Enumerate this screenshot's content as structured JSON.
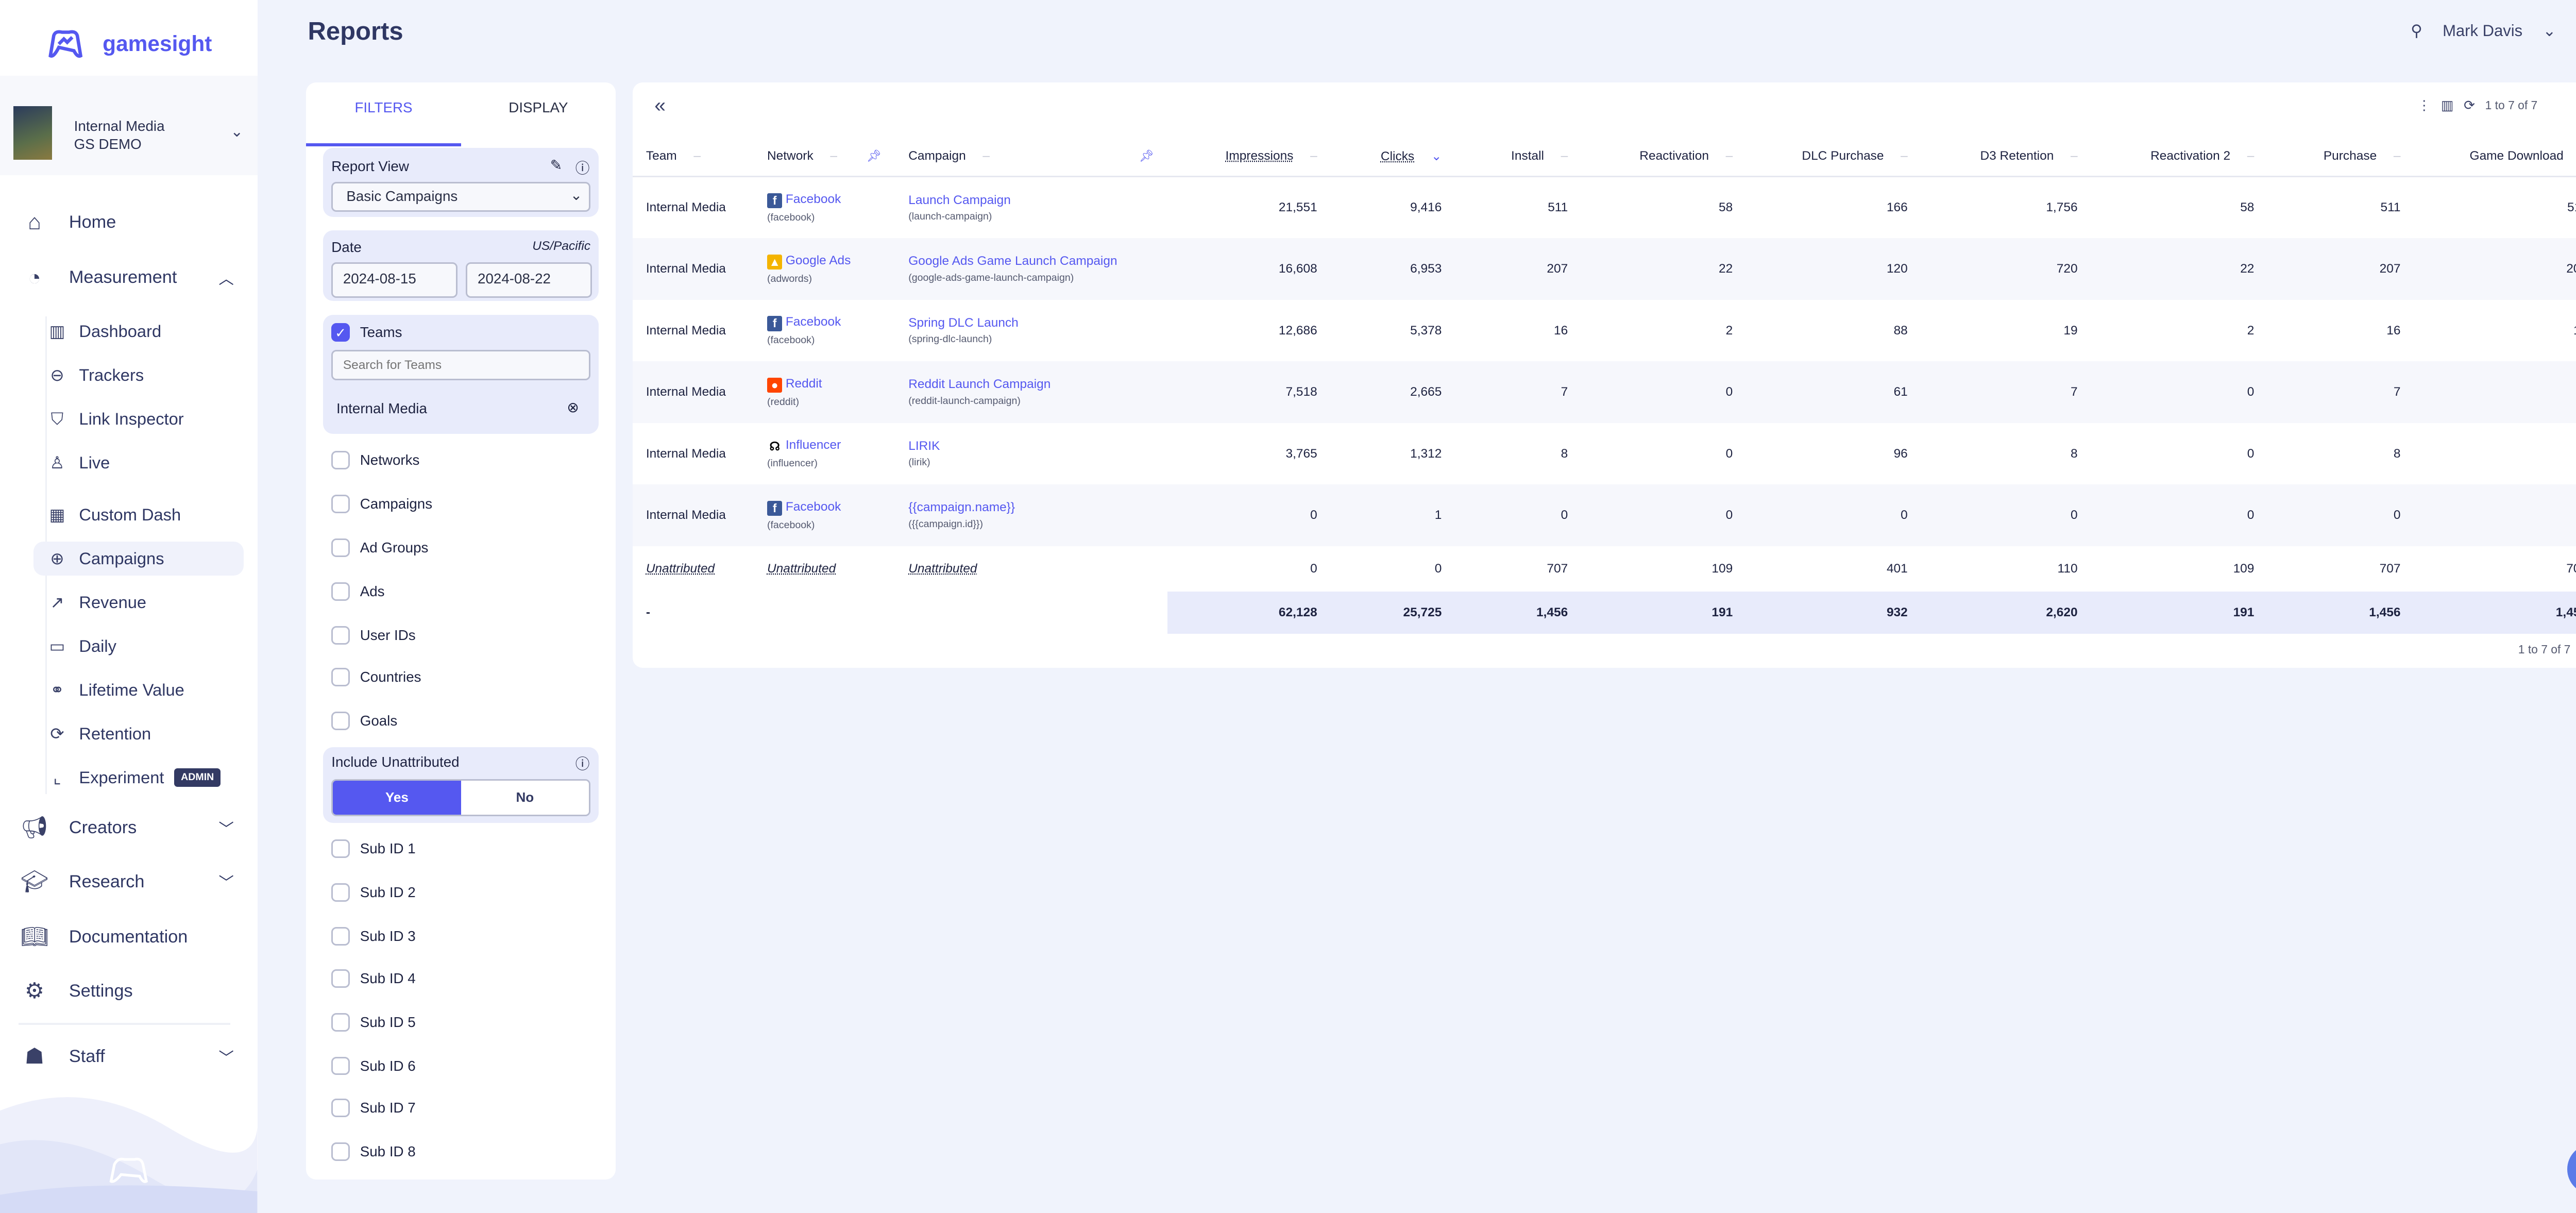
{
  "brand": {
    "name": "gamesight",
    "accent": "#5558f0"
  },
  "account": {
    "name": "Internal Media",
    "org": "GS DEMO"
  },
  "nav": {
    "home": "Home",
    "measurement": "Measurement",
    "sub": [
      "Dashboard",
      "Trackers",
      "Link Inspector",
      "Live",
      "Custom Dash",
      "Campaigns",
      "Revenue",
      "Daily",
      "Lifetime Value",
      "Retention",
      "Experiment"
    ],
    "admin_badge": "ADMIN",
    "creators": "Creators",
    "research": "Research",
    "documentation": "Documentation",
    "settings": "Settings",
    "staff": "Staff"
  },
  "page": {
    "title": "Reports"
  },
  "user": {
    "name": "Mark Davis"
  },
  "filters": {
    "tabs": [
      "FILTERS",
      "DISPLAY"
    ],
    "report_view_label": "Report View",
    "report_view_value": "Basic Campaigns",
    "date_label": "Date",
    "timezone": "US/Pacific",
    "date_start": "2024-08-15",
    "date_end": "2024-08-22",
    "teams_label": "Teams",
    "teams_placeholder": "Search for Teams",
    "teams_selected": "Internal Media",
    "checkboxes": [
      "Networks",
      "Campaigns",
      "Ad Groups",
      "Ads",
      "User IDs",
      "Countries",
      "Goals"
    ],
    "include_unattributed_label": "Include Unattributed",
    "yes": "Yes",
    "no": "No",
    "subids": [
      "Sub ID 1",
      "Sub ID 2",
      "Sub ID 3",
      "Sub ID 4",
      "Sub ID 5",
      "Sub ID 6",
      "Sub ID 7",
      "Sub ID 8"
    ]
  },
  "table": {
    "pagination": "1 to 7 of 7",
    "columns": [
      "Team",
      "Network",
      "Campaign",
      "Impressions",
      "Clicks",
      "Install",
      "Reactivation",
      "DLC Purchase",
      "D3 Retention",
      "Reactivation 2",
      "Purchase",
      "Game Download"
    ],
    "rows": [
      {
        "team": "Internal Media",
        "network": "Facebook",
        "network_id": "(facebook)",
        "campaign": "Launch Campaign",
        "campaign_id": "(launch-campaign)",
        "values": [
          "21,551",
          "9,416",
          "511",
          "58",
          "166",
          "1,756",
          "58",
          "511",
          "511"
        ]
      },
      {
        "team": "Internal Media",
        "network": "Google Ads",
        "network_id": "(adwords)",
        "campaign": "Google Ads Game Launch Campaign",
        "campaign_id": "(google-ads-game-launch-campaign)",
        "values": [
          "16,608",
          "6,953",
          "207",
          "22",
          "120",
          "720",
          "22",
          "207",
          "207"
        ]
      },
      {
        "team": "Internal Media",
        "network": "Facebook",
        "network_id": "(facebook)",
        "campaign": "Spring DLC Launch",
        "campaign_id": "(spring-dlc-launch)",
        "values": [
          "12,686",
          "5,378",
          "16",
          "2",
          "88",
          "19",
          "2",
          "16",
          "16"
        ]
      },
      {
        "team": "Internal Media",
        "network": "Reddit",
        "network_id": "(reddit)",
        "campaign": "Reddit Launch Campaign",
        "campaign_id": "(reddit-launch-campaign)",
        "values": [
          "7,518",
          "2,665",
          "7",
          "0",
          "61",
          "7",
          "0",
          "7",
          "7"
        ]
      },
      {
        "team": "Internal Media",
        "network": "Influencer",
        "network_id": "(influencer)",
        "campaign": "LIRIK",
        "campaign_id": "(lirik)",
        "values": [
          "3,765",
          "1,312",
          "8",
          "0",
          "96",
          "8",
          "0",
          "8",
          "8"
        ]
      },
      {
        "team": "Internal Media",
        "network": "Facebook",
        "network_id": "(facebook)",
        "campaign": "{{campaign.name}}",
        "campaign_id": "({{campaign.id}})",
        "values": [
          "0",
          "1",
          "0",
          "0",
          "0",
          "0",
          "0",
          "0",
          "0"
        ]
      }
    ],
    "unattributed": {
      "label": "Unattributed",
      "values": [
        "0",
        "0",
        "707",
        "109",
        "401",
        "110",
        "109",
        "707",
        "707"
      ]
    },
    "totals": {
      "label": "-",
      "values": [
        "62,128",
        "25,725",
        "1,456",
        "191",
        "932",
        "2,620",
        "191",
        "1,456",
        "1,456"
      ]
    }
  }
}
